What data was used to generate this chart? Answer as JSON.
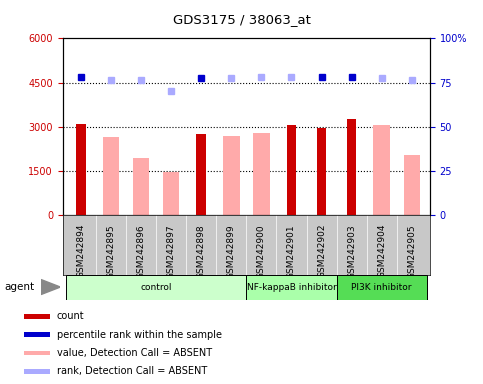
{
  "title": "GDS3175 / 38063_at",
  "samples": [
    "GSM242894",
    "GSM242895",
    "GSM242896",
    "GSM242897",
    "GSM242898",
    "GSM242899",
    "GSM242900",
    "GSM242901",
    "GSM242902",
    "GSM242903",
    "GSM242904",
    "GSM242905"
  ],
  "count_values": [
    3100,
    null,
    null,
    null,
    2750,
    null,
    null,
    3050,
    2950,
    3250,
    null,
    null
  ],
  "absent_bar_values": [
    null,
    2650,
    1950,
    1450,
    null,
    2700,
    2800,
    null,
    null,
    null,
    3050,
    2050
  ],
  "rank_dots_dark": [
    4700,
    null,
    null,
    null,
    4650,
    null,
    null,
    null,
    4700,
    4700,
    null,
    null
  ],
  "rank_dots_light": [
    null,
    4600,
    4600,
    4200,
    null,
    4650,
    4700,
    4700,
    null,
    null,
    4650,
    4600
  ],
  "ylim_left": [
    0,
    6000
  ],
  "ylim_right": [
    0,
    100
  ],
  "yticks_left": [
    0,
    1500,
    3000,
    4500,
    6000
  ],
  "ytick_labels_left": [
    "0",
    "1500",
    "3000",
    "4500",
    "6000"
  ],
  "yticks_right": [
    0,
    25,
    50,
    75,
    100
  ],
  "ytick_labels_right": [
    "0",
    "25",
    "50",
    "75",
    "100%"
  ],
  "groups": [
    {
      "label": "control",
      "start": 0,
      "end": 6,
      "color": "#ccffcc"
    },
    {
      "label": "NF-kappaB inhibitor",
      "start": 6,
      "end": 9,
      "color": "#aaffaa"
    },
    {
      "label": "PI3K inhibitor",
      "start": 9,
      "end": 12,
      "color": "#55dd55"
    }
  ],
  "agent_label": "agent",
  "count_color": "#cc0000",
  "absent_bar_color": "#ffaaaa",
  "dark_dot_color": "#0000cc",
  "light_dot_color": "#aaaaff",
  "bg_color": "#ffffff",
  "legend": [
    {
      "label": "count",
      "color": "#cc0000"
    },
    {
      "label": "percentile rank within the sample",
      "color": "#0000cc"
    },
    {
      "label": "value, Detection Call = ABSENT",
      "color": "#ffaaaa"
    },
    {
      "label": "rank, Detection Call = ABSENT",
      "color": "#aaaaff"
    }
  ]
}
